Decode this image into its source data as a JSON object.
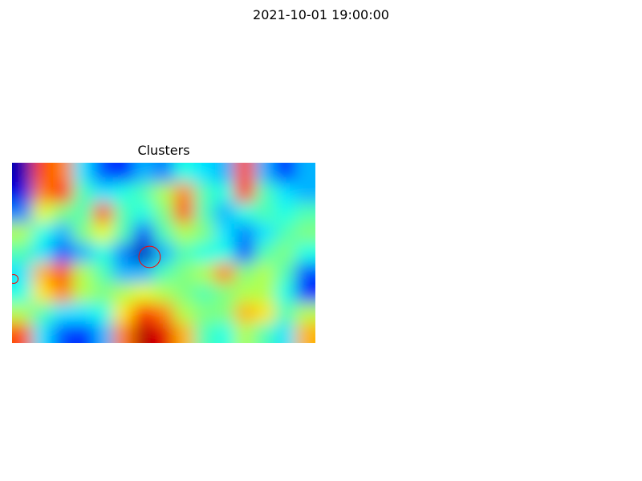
{
  "figure": {
    "suptitle": "2021-10-01 19:00:00"
  },
  "chart_data": {
    "type": "heatmap",
    "title": "Clusters",
    "colormap": "jet",
    "axes_visible": false,
    "grid": false,
    "circle_color": "#ff0000",
    "grid_shape": [
      9,
      15
    ],
    "z_range": [
      0,
      1
    ],
    "z": [
      [
        0.05,
        0.8,
        0.75,
        0.35,
        0.2,
        0.15,
        0.3,
        0.25,
        0.4,
        0.35,
        0.3,
        0.8,
        0.3,
        0.15,
        0.3
      ],
      [
        0.1,
        0.75,
        0.85,
        0.45,
        0.35,
        0.4,
        0.45,
        0.55,
        0.75,
        0.45,
        0.4,
        0.85,
        0.45,
        0.35,
        0.3
      ],
      [
        0.25,
        0.6,
        0.5,
        0.45,
        0.8,
        0.45,
        0.4,
        0.5,
        0.8,
        0.45,
        0.3,
        0.4,
        0.45,
        0.4,
        0.45
      ],
      [
        0.55,
        0.4,
        0.3,
        0.5,
        0.6,
        0.45,
        0.2,
        0.45,
        0.55,
        0.5,
        0.35,
        0.25,
        0.35,
        0.45,
        0.5
      ],
      [
        0.45,
        0.35,
        0.2,
        0.3,
        0.4,
        0.25,
        0.05,
        0.3,
        0.45,
        0.4,
        0.4,
        0.2,
        0.45,
        0.5,
        0.4
      ],
      [
        0.35,
        0.7,
        0.8,
        0.55,
        0.45,
        0.3,
        0.3,
        0.45,
        0.5,
        0.55,
        0.75,
        0.5,
        0.55,
        0.45,
        0.2
      ],
      [
        0.4,
        0.65,
        0.75,
        0.55,
        0.5,
        0.55,
        0.6,
        0.55,
        0.5,
        0.45,
        0.5,
        0.55,
        0.55,
        0.4,
        0.15
      ],
      [
        0.55,
        0.45,
        0.35,
        0.35,
        0.4,
        0.65,
        0.85,
        0.75,
        0.55,
        0.5,
        0.5,
        0.7,
        0.65,
        0.45,
        0.55
      ],
      [
        0.8,
        0.35,
        0.2,
        0.15,
        0.3,
        0.75,
        0.95,
        0.9,
        0.7,
        0.45,
        0.4,
        0.55,
        0.45,
        0.35,
        0.7
      ]
    ],
    "circles": [
      {
        "col": 6.3,
        "row": 4.2,
        "radius_cells": 0.53
      },
      {
        "col": 0.0,
        "row": 5.3,
        "radius_cells": 0.22
      }
    ]
  }
}
